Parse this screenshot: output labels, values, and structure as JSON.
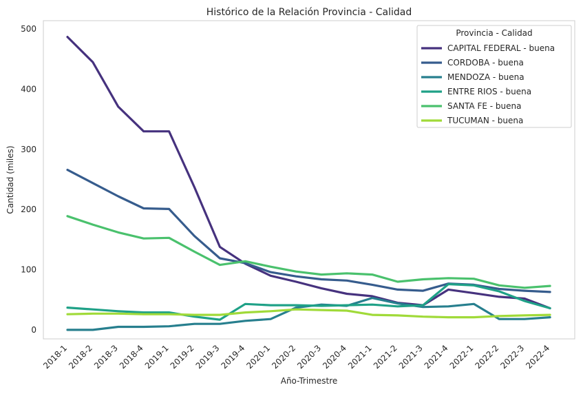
{
  "chart_data": {
    "type": "line",
    "title": "Histórico de la Relación Provincia - Calidad",
    "xlabel": "Año-Trimestre",
    "ylabel": "Cantidad (miles)",
    "categories": [
      "2018-1",
      "2018-2",
      "2018-3",
      "2018-4",
      "2019-1",
      "2019-2",
      "2019-3",
      "2019-4",
      "2020-1",
      "2020-2",
      "2020-3",
      "2020-4",
      "2021-1",
      "2021-2",
      "2021-3",
      "2021-4",
      "2022-1",
      "2022-2",
      "2022-3",
      "2022-4"
    ],
    "y_ticks": [
      0,
      100,
      200,
      300,
      400,
      500
    ],
    "ylim": [
      -15,
      514
    ],
    "grid": false,
    "legend": {
      "title": "Provincia - Calidad",
      "placement": "top-right"
    },
    "series": [
      {
        "name": "CAPITAL FEDERAL - buena",
        "color": "#46327e",
        "values": [
          487,
          445,
          371,
          330,
          330,
          237,
          138,
          110,
          90,
          80,
          69,
          60,
          56,
          45,
          41,
          67,
          61,
          55,
          52,
          36
        ]
      },
      {
        "name": "CORDOBA - buena",
        "color": "#365c8d",
        "values": [
          266,
          244,
          222,
          202,
          201,
          156,
          119,
          111,
          96,
          89,
          84,
          82,
          75,
          67,
          65,
          77,
          75,
          68,
          65,
          63
        ]
      },
      {
        "name": "MENDOZA - buena",
        "color": "#277f8e",
        "values": [
          0,
          0,
          5,
          5,
          6,
          10,
          10,
          15,
          18,
          37,
          42,
          40,
          53,
          44,
          38,
          39,
          43,
          18,
          18,
          21
        ]
      },
      {
        "name": "ENTRE RIOS - buena",
        "color": "#1fa187",
        "values": [
          37,
          34,
          31,
          29,
          29,
          22,
          17,
          43,
          41,
          41,
          40,
          41,
          42,
          39,
          41,
          76,
          74,
          64,
          48,
          36
        ]
      },
      {
        "name": "SANTA FE - buena",
        "color": "#4ac16d",
        "values": [
          189,
          175,
          162,
          152,
          153,
          130,
          108,
          114,
          105,
          97,
          92,
          94,
          92,
          80,
          84,
          86,
          85,
          74,
          70,
          73
        ]
      },
      {
        "name": "TUCUMAN - buena",
        "color": "#a0da39",
        "values": [
          26,
          27,
          27,
          26,
          26,
          25,
          25,
          29,
          31,
          34,
          33,
          32,
          25,
          24,
          22,
          21,
          21,
          23,
          24,
          25
        ]
      }
    ]
  }
}
